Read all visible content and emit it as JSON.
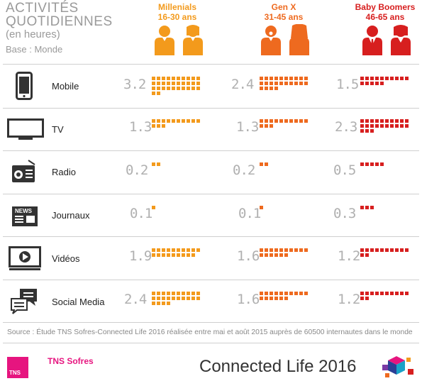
{
  "header": {
    "title_line1": "ACTIVITÉS",
    "title_line2": "QUOTIDIENNES",
    "subtitle": "(en heures)",
    "base": "Base : Monde"
  },
  "generations": [
    {
      "name": "Millenials",
      "ages": "16-30 ans",
      "color": "#f39a1c"
    },
    {
      "name": "Gen X",
      "ages": "31-45 ans",
      "color": "#ee6a1f"
    },
    {
      "name": "Baby Boomers",
      "ages": "46-65 ans",
      "color": "#d71f1f"
    }
  ],
  "rows": [
    {
      "label": "Mobile",
      "icon": "mobile-phone-icon",
      "values": [
        "3.2",
        "2.4",
        "1.5"
      ]
    },
    {
      "label": "TV",
      "icon": "tv-icon",
      "values": [
        "1.3",
        "1.3",
        "2.3"
      ]
    },
    {
      "label": "Radio",
      "icon": "radio-icon",
      "values": [
        "0.2",
        "0.2",
        "0.5"
      ]
    },
    {
      "label": "Journaux",
      "icon": "newspaper-icon",
      "values": [
        "0.1",
        "0.1",
        "0.3"
      ]
    },
    {
      "label": "Vidéos",
      "icon": "video-player-icon",
      "values": [
        "1.9",
        "1.6",
        "1.2"
      ]
    },
    {
      "label": "Social Media",
      "icon": "chat-bubbles-icon",
      "values": [
        "2.4",
        "1.6",
        "1.2"
      ]
    }
  ],
  "news_icon_text": "NEWS",
  "footer": {
    "source": "Source : Étude TNS Sofres-Connected Life 2016 réalisée entre mai et août 2015 auprès de 60500 internautes dans le monde",
    "logo_text": "TNS",
    "brand": "TNS Sofres",
    "product": "Connected Life 2016"
  },
  "chart_data": {
    "type": "table",
    "title": "ACTIVITÉS QUOTIDIENNES",
    "subtitle": "(en heures)",
    "categories": [
      "Mobile",
      "TV",
      "Radio",
      "Journaux",
      "Vidéos",
      "Social Media"
    ],
    "series": [
      {
        "name": "Millenials 16-30 ans",
        "values": [
          3.2,
          1.3,
          0.2,
          0.1,
          1.9,
          2.4
        ]
      },
      {
        "name": "Gen X 31-45 ans",
        "values": [
          2.4,
          1.3,
          0.2,
          0.1,
          1.6,
          1.6
        ]
      },
      {
        "name": "Baby Boomers 46-65 ans",
        "values": [
          1.5,
          2.3,
          0.5,
          0.3,
          1.2,
          1.2
        ]
      }
    ]
  }
}
